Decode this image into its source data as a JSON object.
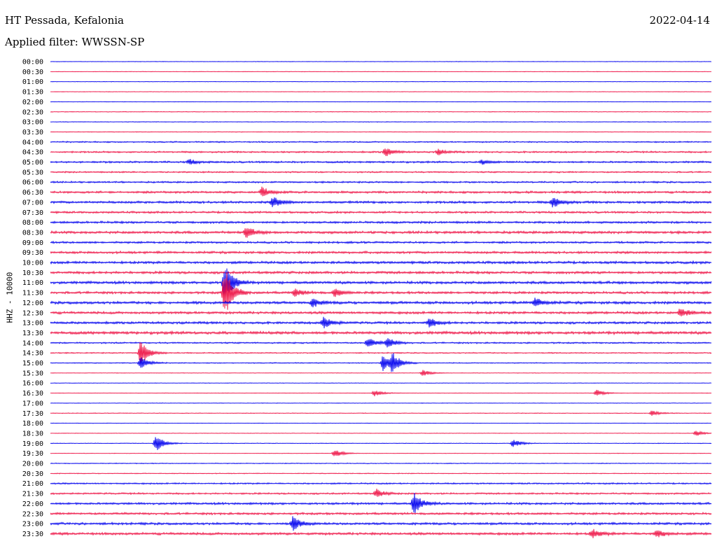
{
  "header": {
    "station": "HT Pessada, Kefalonia",
    "date": "2022-04-14",
    "filter": "Applied filter: WWSSN-SP"
  },
  "chart_data": {
    "type": "line",
    "title": "HT Pessada, Kefalonia",
    "date": "2022-04-14",
    "filter": "WWSSN-SP",
    "ylabel": "HHZ - 10000",
    "row_labels": [
      "00:00",
      "00:30",
      "01:00",
      "01:30",
      "02:00",
      "02:30",
      "03:00",
      "03:30",
      "04:00",
      "04:30",
      "05:00",
      "05:30",
      "06:00",
      "06:30",
      "07:00",
      "07:30",
      "08:00",
      "08:30",
      "09:00",
      "09:30",
      "10:00",
      "10:30",
      "11:00",
      "11:30",
      "12:00",
      "12:30",
      "13:00",
      "13:30",
      "14:00",
      "14:30",
      "15:00",
      "15:30",
      "16:00",
      "16:30",
      "17:00",
      "17:30",
      "18:00",
      "18:30",
      "19:00",
      "19:30",
      "20:00",
      "20:30",
      "21:00",
      "21:30",
      "22:00",
      "22:30",
      "23:00",
      "23:30"
    ],
    "colors": [
      "#0000ee",
      "#ee1144"
    ],
    "noise_level": [
      0.3,
      0.3,
      0.3,
      0.3,
      0.3,
      0.4,
      0.4,
      0.4,
      0.8,
      1.0,
      1.1,
      0.9,
      1.0,
      1.3,
      1.4,
      1.2,
      1.3,
      1.5,
      1.2,
      1.4,
      1.5,
      1.5,
      1.6,
      1.4,
      1.6,
      1.5,
      1.4,
      1.7,
      0.9,
      0.7,
      0.6,
      0.3,
      0.3,
      0.3,
      0.3,
      0.4,
      0.3,
      0.3,
      0.4,
      0.3,
      0.5,
      0.5,
      0.9,
      1.0,
      1.3,
      1.3,
      1.4,
      1.5
    ],
    "events": [
      {
        "row": 9,
        "minute": 15.2,
        "amp": 7
      },
      {
        "row": 9,
        "minute": 17.6,
        "amp": 4
      },
      {
        "row": 10,
        "minute": 6.3,
        "amp": 4
      },
      {
        "row": 10,
        "minute": 19.6,
        "amp": 3
      },
      {
        "row": 13,
        "minute": 9.6,
        "amp": 7
      },
      {
        "row": 14,
        "minute": 10.1,
        "amp": 8
      },
      {
        "row": 14,
        "minute": 22.8,
        "amp": 8
      },
      {
        "row": 17,
        "minute": 8.9,
        "amp": 8
      },
      {
        "row": 22,
        "minute": 7.9,
        "amp": 30
      },
      {
        "row": 23,
        "minute": 7.9,
        "amp": 40
      },
      {
        "row": 23,
        "minute": 11.1,
        "amp": 6
      },
      {
        "row": 23,
        "minute": 12.9,
        "amp": 6
      },
      {
        "row": 24,
        "minute": 11.9,
        "amp": 6
      },
      {
        "row": 24,
        "minute": 22.0,
        "amp": 7
      },
      {
        "row": 25,
        "minute": 28.6,
        "amp": 7
      },
      {
        "row": 26,
        "minute": 12.4,
        "amp": 8
      },
      {
        "row": 26,
        "minute": 17.2,
        "amp": 7
      },
      {
        "row": 28,
        "minute": 14.4,
        "amp": 8
      },
      {
        "row": 28,
        "minute": 15.3,
        "amp": 8
      },
      {
        "row": 29,
        "minute": 4.1,
        "amp": 20
      },
      {
        "row": 30,
        "minute": 4.1,
        "amp": 10
      },
      {
        "row": 30,
        "minute": 15.1,
        "amp": 12
      },
      {
        "row": 30,
        "minute": 15.5,
        "amp": 14
      },
      {
        "row": 31,
        "minute": 16.9,
        "amp": 5
      },
      {
        "row": 33,
        "minute": 14.7,
        "amp": 5
      },
      {
        "row": 33,
        "minute": 24.8,
        "amp": 5
      },
      {
        "row": 35,
        "minute": 27.3,
        "amp": 4
      },
      {
        "row": 37,
        "minute": 29.3,
        "amp": 4
      },
      {
        "row": 38,
        "minute": 4.8,
        "amp": 12
      },
      {
        "row": 38,
        "minute": 21.0,
        "amp": 6
      },
      {
        "row": 39,
        "minute": 12.9,
        "amp": 6
      },
      {
        "row": 43,
        "minute": 14.8,
        "amp": 6
      },
      {
        "row": 44,
        "minute": 16.5,
        "amp": 16
      },
      {
        "row": 46,
        "minute": 11.0,
        "amp": 10
      },
      {
        "row": 47,
        "minute": 24.6,
        "amp": 7
      },
      {
        "row": 47,
        "minute": 27.5,
        "amp": 6
      }
    ]
  }
}
